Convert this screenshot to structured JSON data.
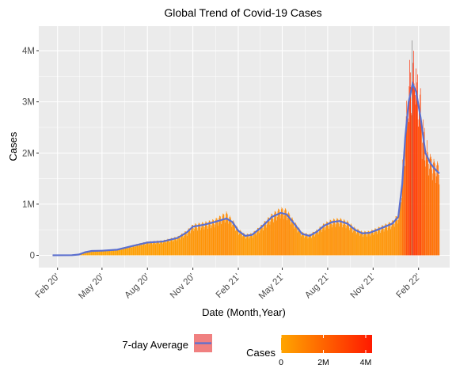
{
  "chart_data": {
    "type": "bar",
    "title": "Global Trend of Covid-19 Cases",
    "xlabel": "Date (Month,Year)",
    "ylabel": "Cases",
    "x_ticks": [
      {
        "date": "2020-02-01",
        "label": "Feb 20'"
      },
      {
        "date": "2020-05-01",
        "label": "May 20'"
      },
      {
        "date": "2020-08-01",
        "label": "Aug 20'"
      },
      {
        "date": "2020-11-01",
        "label": "Nov 20'"
      },
      {
        "date": "2021-02-01",
        "label": "Feb 21'"
      },
      {
        "date": "2021-05-01",
        "label": "May 21'"
      },
      {
        "date": "2021-08-01",
        "label": "Aug 21'"
      },
      {
        "date": "2021-11-01",
        "label": "Nov 21'"
      },
      {
        "date": "2022-02-01",
        "label": "Feb 22'"
      }
    ],
    "y_ticks": [
      {
        "value": 0,
        "label": "0"
      },
      {
        "value": 1000000,
        "label": "1M"
      },
      {
        "value": 2000000,
        "label": "2M"
      },
      {
        "value": 3000000,
        "label": "3M"
      },
      {
        "value": 4000000,
        "label": "4M"
      }
    ],
    "xlim": [
      "2019-12-25",
      "2022-04-05"
    ],
    "ylim": [
      -240000,
      4480000
    ],
    "grid": true,
    "series": [
      {
        "name": "Cases",
        "kind": "daily-bars",
        "date_start": "2020-01-22",
        "date_end": "2022-03-15",
        "weekly_points": [
          [
            "2020-01-22",
            1000
          ],
          [
            "2020-03-01",
            3000
          ],
          [
            "2020-03-15",
            15000
          ],
          [
            "2020-03-28",
            60000
          ],
          [
            "2020-04-10",
            85000
          ],
          [
            "2020-05-01",
            90000
          ],
          [
            "2020-06-01",
            110000
          ],
          [
            "2020-07-01",
            180000
          ],
          [
            "2020-08-01",
            250000
          ],
          [
            "2020-09-01",
            270000
          ],
          [
            "2020-10-01",
            340000
          ],
          [
            "2020-10-20",
            450000
          ],
          [
            "2020-11-01",
            560000
          ],
          [
            "2020-11-25",
            600000
          ],
          [
            "2020-12-15",
            650000
          ],
          [
            "2021-01-08",
            780000
          ],
          [
            "2021-01-20",
            650000
          ],
          [
            "2021-02-01",
            480000
          ],
          [
            "2021-02-15",
            380000
          ],
          [
            "2021-03-01",
            400000
          ],
          [
            "2021-03-20",
            550000
          ],
          [
            "2021-04-10",
            750000
          ],
          [
            "2021-04-28",
            860000
          ],
          [
            "2021-05-10",
            830000
          ],
          [
            "2021-05-25",
            620000
          ],
          [
            "2021-06-10",
            420000
          ],
          [
            "2021-06-25",
            380000
          ],
          [
            "2021-07-10",
            460000
          ],
          [
            "2021-07-25",
            580000
          ],
          [
            "2021-08-10",
            650000
          ],
          [
            "2021-08-25",
            670000
          ],
          [
            "2021-09-10",
            620000
          ],
          [
            "2021-09-25",
            500000
          ],
          [
            "2021-10-10",
            430000
          ],
          [
            "2021-10-25",
            440000
          ],
          [
            "2021-11-10",
            500000
          ],
          [
            "2021-11-25",
            560000
          ],
          [
            "2021-12-10",
            620000
          ],
          [
            "2021-12-22",
            750000
          ],
          [
            "2021-12-30",
            1400000
          ],
          [
            "2022-01-05",
            2300000
          ],
          [
            "2022-01-12",
            3000000
          ],
          [
            "2022-01-20",
            3400000
          ],
          [
            "2022-01-27",
            3300000
          ],
          [
            "2022-02-05",
            2700000
          ],
          [
            "2022-02-15",
            2000000
          ],
          [
            "2022-02-25",
            1800000
          ],
          [
            "2022-03-05",
            1700000
          ],
          [
            "2022-03-15",
            1650000
          ]
        ],
        "peak": {
          "date": "2022-01-19",
          "value": 4200000
        }
      },
      {
        "name": "7-day Average",
        "kind": "line",
        "color": "#5b6fcf",
        "points": [
          [
            "2020-01-22",
            1000
          ],
          [
            "2020-03-01",
            3000
          ],
          [
            "2020-03-15",
            15000
          ],
          [
            "2020-03-28",
            60000
          ],
          [
            "2020-04-10",
            85000
          ],
          [
            "2020-05-01",
            90000
          ],
          [
            "2020-06-01",
            110000
          ],
          [
            "2020-07-01",
            180000
          ],
          [
            "2020-08-01",
            250000
          ],
          [
            "2020-09-01",
            270000
          ],
          [
            "2020-10-01",
            340000
          ],
          [
            "2020-10-20",
            450000
          ],
          [
            "2020-11-01",
            560000
          ],
          [
            "2020-11-25",
            600000
          ],
          [
            "2020-12-15",
            650000
          ],
          [
            "2021-01-08",
            720000
          ],
          [
            "2021-01-20",
            650000
          ],
          [
            "2021-02-01",
            480000
          ],
          [
            "2021-02-15",
            380000
          ],
          [
            "2021-03-01",
            400000
          ],
          [
            "2021-03-20",
            550000
          ],
          [
            "2021-04-10",
            750000
          ],
          [
            "2021-04-28",
            830000
          ],
          [
            "2021-05-10",
            800000
          ],
          [
            "2021-05-25",
            620000
          ],
          [
            "2021-06-10",
            420000
          ],
          [
            "2021-06-25",
            380000
          ],
          [
            "2021-07-10",
            460000
          ],
          [
            "2021-07-25",
            580000
          ],
          [
            "2021-08-10",
            650000
          ],
          [
            "2021-08-25",
            670000
          ],
          [
            "2021-09-10",
            620000
          ],
          [
            "2021-09-25",
            500000
          ],
          [
            "2021-10-10",
            430000
          ],
          [
            "2021-10-25",
            440000
          ],
          [
            "2021-11-10",
            500000
          ],
          [
            "2021-11-25",
            560000
          ],
          [
            "2021-12-10",
            620000
          ],
          [
            "2021-12-22",
            750000
          ],
          [
            "2021-12-30",
            1400000
          ],
          [
            "2022-01-05",
            2300000
          ],
          [
            "2022-01-12",
            3000000
          ],
          [
            "2022-01-20",
            3350000
          ],
          [
            "2022-01-27",
            3200000
          ],
          [
            "2022-02-05",
            2700000
          ],
          [
            "2022-02-15",
            2000000
          ],
          [
            "2022-02-25",
            1800000
          ],
          [
            "2022-03-05",
            1700000
          ],
          [
            "2022-03-15",
            1600000
          ]
        ]
      }
    ],
    "legend": {
      "placement": "bottom",
      "line_label": "7-day Average",
      "line_key_fill": "#f08080",
      "color_title": "Cases",
      "color_low": "#ffa500",
      "color_high": "#ff1a00",
      "color_range": [
        0,
        4300000
      ],
      "color_ticks": [
        {
          "value": 0,
          "label": "0"
        },
        {
          "value": 2000000,
          "label": "2M"
        },
        {
          "value": 4000000,
          "label": "4M"
        }
      ]
    },
    "colors": {
      "panel_bg": "#ebebeb",
      "grid_major": "#ffffff",
      "tick_mark": "#333333"
    }
  }
}
